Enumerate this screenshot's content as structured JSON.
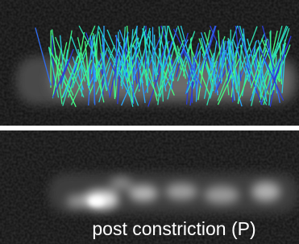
{
  "caption": "post constriction (P)"
}
